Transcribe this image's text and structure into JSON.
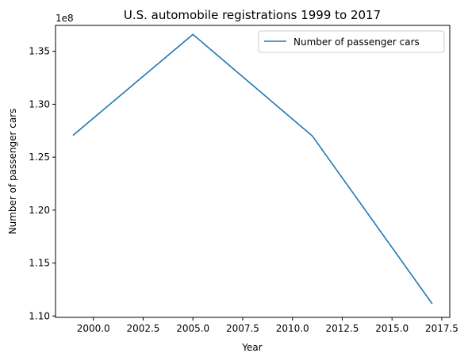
{
  "chart_data": {
    "type": "line",
    "title": "U.S. automobile registrations 1999 to 2017",
    "xlabel": "Year",
    "ylabel": "Number of passenger cars",
    "y_offset_label": "1e8",
    "xlim": [
      1998.1,
      2017.9
    ],
    "ylim": [
      1.0987,
      1.3745
    ],
    "x_ticks": [
      2000.0,
      2002.5,
      2005.0,
      2007.5,
      2010.0,
      2012.5,
      2015.0,
      2017.5
    ],
    "x_tick_labels": [
      "2000.0",
      "2002.5",
      "2005.0",
      "2007.5",
      "2010.0",
      "2012.5",
      "2015.0",
      "2017.5"
    ],
    "y_ticks": [
      1.1,
      1.15,
      1.2,
      1.25,
      1.3,
      1.35
    ],
    "y_tick_labels": [
      "1.10",
      "1.15",
      "1.20",
      "1.25",
      "1.30",
      "1.35"
    ],
    "grid": false,
    "legend_position": "top-right",
    "series": [
      {
        "name": "Number of passenger cars",
        "color": "#1f77b4",
        "x": [
          1999,
          2005,
          2011,
          2017
        ],
        "y": [
          1.271,
          1.366,
          1.27,
          1.112
        ]
      }
    ]
  }
}
